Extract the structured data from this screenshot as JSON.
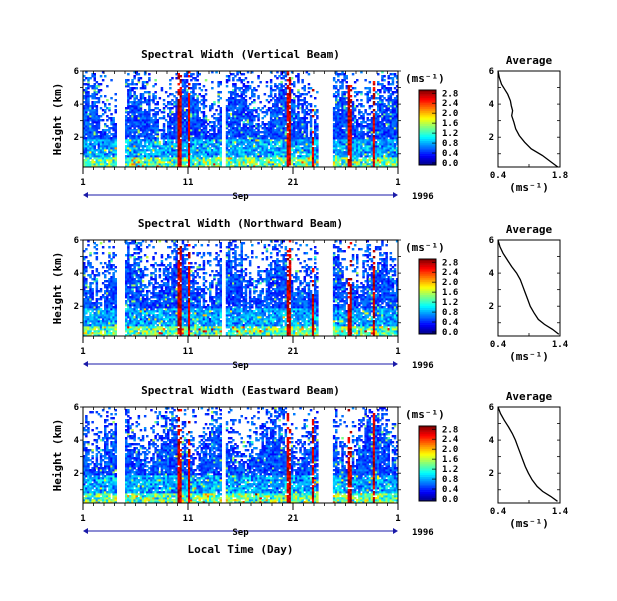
{
  "chart_data": [
    {
      "type": "heatmap",
      "title": "Spectral Width (Vertical Beam)",
      "ylabel": "Height (km)",
      "xlabel": "",
      "ylim": [
        0.2,
        6
      ],
      "yticks": [
        "2",
        "4",
        "6"
      ],
      "xticks": [
        "1",
        "11",
        "21",
        "1"
      ],
      "xlim_days": [
        1,
        31
      ],
      "month_label": "Sep",
      "year_label": "1996",
      "data_gaps_days": [
        [
          4.2,
          4.9
        ],
        [
          14.2,
          14.5
        ],
        [
          23.3,
          24.8
        ]
      ],
      "colorbar": {
        "label": "(ms⁻¹)",
        "ticks": [
          "2.8",
          "2.4",
          "2.0",
          "1.6",
          "1.2",
          "0.8",
          "0.4",
          "0.0"
        ],
        "range": [
          0,
          2.8
        ]
      },
      "average_profile": {
        "title": "Average",
        "xlabel": "(ms⁻¹)",
        "xticks": [
          "0.4",
          "1.8"
        ],
        "yticks": [
          "2",
          "4",
          "6"
        ],
        "xlim": [
          0.4,
          1.8
        ],
        "ylim": [
          0.2,
          6
        ],
        "points": [
          [
            0.4,
            6.0
          ],
          [
            0.43,
            5.6
          ],
          [
            0.48,
            5.2
          ],
          [
            0.55,
            4.9
          ],
          [
            0.62,
            4.6
          ],
          [
            0.68,
            4.2
          ],
          [
            0.7,
            3.9
          ],
          [
            0.73,
            3.6
          ],
          [
            0.71,
            3.3
          ],
          [
            0.76,
            2.9
          ],
          [
            0.8,
            2.5
          ],
          [
            0.88,
            2.1
          ],
          [
            1.0,
            1.7
          ],
          [
            1.15,
            1.3
          ],
          [
            1.4,
            0.9
          ],
          [
            1.6,
            0.5
          ],
          [
            1.75,
            0.2
          ]
        ]
      }
    },
    {
      "type": "heatmap",
      "title": "Spectral Width (Northward Beam)",
      "ylabel": "Height (km)",
      "xlabel": "",
      "ylim": [
        0.2,
        6
      ],
      "yticks": [
        "2",
        "4",
        "6"
      ],
      "xticks": [
        "1",
        "11",
        "21",
        "1"
      ],
      "xlim_days": [
        1,
        31
      ],
      "month_label": "Sep",
      "year_label": "1996",
      "data_gaps_days": [
        [
          4.2,
          4.9
        ],
        [
          14.2,
          14.5
        ],
        [
          23.3,
          24.8
        ]
      ],
      "colorbar": {
        "label": "(ms⁻¹)",
        "ticks": [
          "2.8",
          "2.4",
          "2.0",
          "1.6",
          "1.2",
          "0.8",
          "0.4",
          "0.0"
        ],
        "range": [
          0,
          2.8
        ]
      },
      "average_profile": {
        "title": "Average",
        "xlabel": "(ms⁻¹)",
        "xticks": [
          "0.4",
          "1.4"
        ],
        "yticks": [
          "2",
          "4",
          "6"
        ],
        "xlim": [
          0.4,
          1.4
        ],
        "ylim": [
          0.2,
          6
        ],
        "points": [
          [
            0.4,
            6.0
          ],
          [
            0.43,
            5.6
          ],
          [
            0.48,
            5.2
          ],
          [
            0.55,
            4.8
          ],
          [
            0.62,
            4.4
          ],
          [
            0.7,
            4.0
          ],
          [
            0.76,
            3.6
          ],
          [
            0.8,
            3.2
          ],
          [
            0.84,
            2.8
          ],
          [
            0.88,
            2.4
          ],
          [
            0.92,
            2.0
          ],
          [
            0.98,
            1.6
          ],
          [
            1.05,
            1.2
          ],
          [
            1.15,
            0.9
          ],
          [
            1.28,
            0.6
          ],
          [
            1.38,
            0.3
          ]
        ]
      }
    },
    {
      "type": "heatmap",
      "title": "Spectral Width (Eastward Beam)",
      "ylabel": "Height (km)",
      "xlabel": "Local Time (Day)",
      "ylim": [
        0.2,
        6
      ],
      "yticks": [
        "2",
        "4",
        "6"
      ],
      "xticks": [
        "1",
        "11",
        "21",
        "1"
      ],
      "xlim_days": [
        1,
        31
      ],
      "month_label": "Sep",
      "year_label": "1996",
      "data_gaps_days": [
        [
          4.2,
          4.9
        ],
        [
          14.2,
          14.5
        ],
        [
          23.3,
          24.8
        ]
      ],
      "colorbar": {
        "label": "(ms⁻¹)",
        "ticks": [
          "2.8",
          "2.4",
          "2.0",
          "1.6",
          "1.2",
          "0.8",
          "0.4",
          "0.0"
        ],
        "range": [
          0,
          2.8
        ]
      },
      "average_profile": {
        "title": "Average",
        "xlabel": "(ms⁻¹)",
        "xticks": [
          "0.4",
          "1.4"
        ],
        "yticks": [
          "2",
          "4",
          "6"
        ],
        "xlim": [
          0.4,
          1.4
        ],
        "ylim": [
          0.2,
          6
        ],
        "points": [
          [
            0.4,
            6.0
          ],
          [
            0.44,
            5.6
          ],
          [
            0.5,
            5.2
          ],
          [
            0.57,
            4.8
          ],
          [
            0.63,
            4.4
          ],
          [
            0.68,
            4.0
          ],
          [
            0.72,
            3.6
          ],
          [
            0.76,
            3.2
          ],
          [
            0.8,
            2.8
          ],
          [
            0.84,
            2.4
          ],
          [
            0.89,
            2.0
          ],
          [
            0.95,
            1.6
          ],
          [
            1.03,
            1.2
          ],
          [
            1.12,
            0.9
          ],
          [
            1.25,
            0.6
          ],
          [
            1.36,
            0.3
          ]
        ]
      }
    }
  ]
}
